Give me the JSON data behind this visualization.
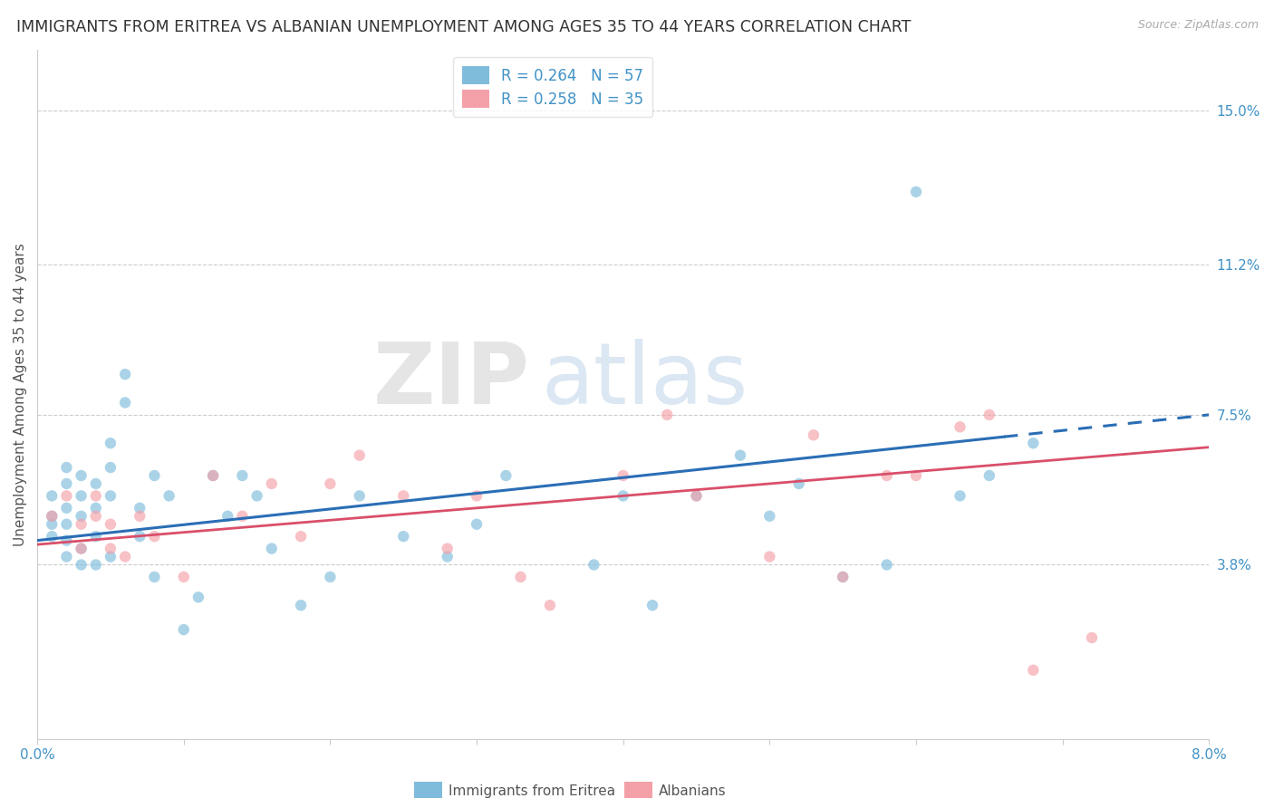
{
  "title": "IMMIGRANTS FROM ERITREA VS ALBANIAN UNEMPLOYMENT AMONG AGES 35 TO 44 YEARS CORRELATION CHART",
  "source": "Source: ZipAtlas.com",
  "ylabel": "Unemployment Among Ages 35 to 44 years",
  "xlim": [
    0.0,
    0.08
  ],
  "ylim": [
    -0.005,
    0.165
  ],
  "ytick_positions": [
    0.038,
    0.075,
    0.112,
    0.15
  ],
  "ytick_labels": [
    "3.8%",
    "7.5%",
    "11.2%",
    "15.0%"
  ],
  "legend_blue_label": "R = 0.264   N = 57",
  "legend_pink_label": "R = 0.258   N = 35",
  "scatter_blue": {
    "x": [
      0.001,
      0.001,
      0.001,
      0.001,
      0.002,
      0.002,
      0.002,
      0.002,
      0.002,
      0.002,
      0.003,
      0.003,
      0.003,
      0.003,
      0.003,
      0.004,
      0.004,
      0.004,
      0.004,
      0.005,
      0.005,
      0.005,
      0.005,
      0.006,
      0.006,
      0.007,
      0.007,
      0.008,
      0.008,
      0.009,
      0.01,
      0.011,
      0.012,
      0.013,
      0.014,
      0.015,
      0.016,
      0.018,
      0.02,
      0.022,
      0.025,
      0.028,
      0.03,
      0.032,
      0.038,
      0.04,
      0.042,
      0.045,
      0.048,
      0.05,
      0.052,
      0.055,
      0.058,
      0.06,
      0.063,
      0.065,
      0.068
    ],
    "y": [
      0.05,
      0.055,
      0.048,
      0.045,
      0.052,
      0.058,
      0.044,
      0.04,
      0.062,
      0.048,
      0.038,
      0.042,
      0.055,
      0.06,
      0.05,
      0.038,
      0.045,
      0.058,
      0.052,
      0.055,
      0.04,
      0.062,
      0.068,
      0.078,
      0.085,
      0.052,
      0.045,
      0.06,
      0.035,
      0.055,
      0.022,
      0.03,
      0.06,
      0.05,
      0.06,
      0.055,
      0.042,
      0.028,
      0.035,
      0.055,
      0.045,
      0.04,
      0.048,
      0.06,
      0.038,
      0.055,
      0.028,
      0.055,
      0.065,
      0.05,
      0.058,
      0.035,
      0.038,
      0.13,
      0.055,
      0.06,
      0.068
    ],
    "color": "#7fbcdc",
    "alpha": 0.65,
    "size": 80
  },
  "scatter_pink": {
    "x": [
      0.001,
      0.002,
      0.003,
      0.003,
      0.004,
      0.004,
      0.005,
      0.005,
      0.006,
      0.007,
      0.008,
      0.01,
      0.012,
      0.014,
      0.016,
      0.018,
      0.02,
      0.022,
      0.025,
      0.028,
      0.03,
      0.033,
      0.035,
      0.04,
      0.043,
      0.045,
      0.05,
      0.053,
      0.055,
      0.058,
      0.06,
      0.063,
      0.065,
      0.068,
      0.072
    ],
    "y": [
      0.05,
      0.055,
      0.048,
      0.042,
      0.055,
      0.05,
      0.048,
      0.042,
      0.04,
      0.05,
      0.045,
      0.035,
      0.06,
      0.05,
      0.058,
      0.045,
      0.058,
      0.065,
      0.055,
      0.042,
      0.055,
      0.035,
      0.028,
      0.06,
      0.075,
      0.055,
      0.04,
      0.07,
      0.035,
      0.06,
      0.06,
      0.072,
      0.075,
      0.012,
      0.02
    ],
    "color": "#f4a0a8",
    "alpha": 0.65,
    "size": 80
  },
  "trendline_blue": {
    "x_solid_start": 0.0,
    "x_solid_end": 0.066,
    "x_dash_start": 0.066,
    "x_dash_end": 0.08,
    "y_start": 0.044,
    "y_end": 0.075,
    "color": "#2a6eb5",
    "linewidth": 2.2
  },
  "trendline_pink": {
    "x_start": 0.0,
    "x_end": 0.08,
    "y_start": 0.043,
    "y_end": 0.067,
    "color": "#d94f6a",
    "linewidth": 2.0
  },
  "watermark_zip": "ZIP",
  "watermark_atlas": "atlas",
  "background_color": "#ffffff",
  "grid_color": "#cccccc",
  "title_fontsize": 12.5,
  "axis_label_fontsize": 11,
  "tick_fontsize": 11,
  "source_fontsize": 9
}
